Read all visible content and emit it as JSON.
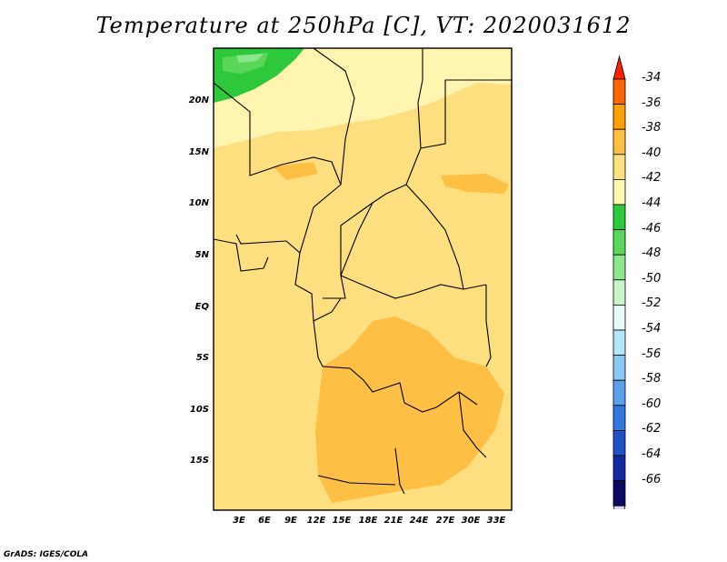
{
  "title": "Temperature at 250hPa [C], VT: 2020031612",
  "credit": "GrADS: IGES/COLA",
  "lat_labels": [
    "20N",
    "15N",
    "10N",
    "5N",
    "EQ",
    "5S",
    "10S",
    "15S"
  ],
  "lon_labels": [
    "3E",
    "6E",
    "9E",
    "12E",
    "15E",
    "18E",
    "21E",
    "24E",
    "27E",
    "30E",
    "33E"
  ],
  "colorbar": {
    "labels": [
      "-34",
      "-36",
      "-38",
      "-40",
      "-42",
      "-44",
      "-46",
      "-48",
      "-50",
      "-52",
      "-54",
      "-56",
      "-58",
      "-60",
      "-62",
      "-64",
      "-66"
    ],
    "colors": [
      "#ff2000",
      "#ff6400",
      "#ffa000",
      "#ffc040",
      "#ffe080",
      "#fff8b0",
      "#2ec83c",
      "#5ad75a",
      "#8ce68c",
      "#c8f5c8",
      "#e6fafa",
      "#b4e6f8",
      "#8cc8f5",
      "#5aa0eb",
      "#3278e1",
      "#1e50c8",
      "#1428a0",
      "#0a0a64",
      "#d7d7f5"
    ]
  }
}
